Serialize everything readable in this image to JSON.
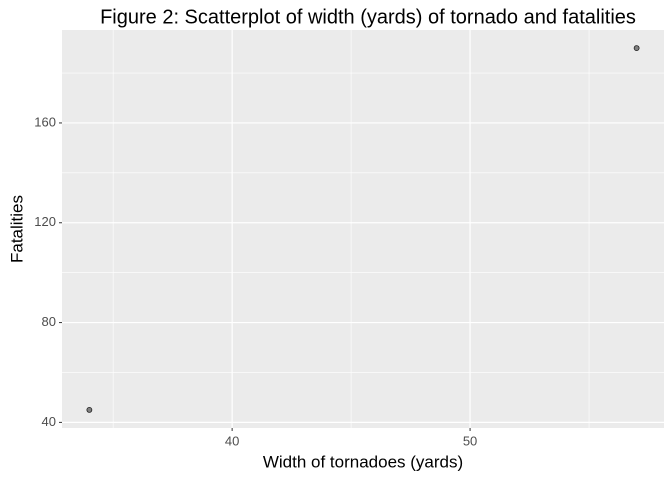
{
  "chart_data": {
    "type": "scatter",
    "title": "Figure 2: Scatterplot of width (yards) of tornado and fatalities",
    "x_label": "Width of tornadoes (yards)",
    "y_label": "Fatalities",
    "series": [
      {
        "x": [
          34,
          57
        ],
        "values": [
          45,
          190
        ],
        "color": "#808080"
      }
    ],
    "xlim": [
      32.85,
      58.15
    ],
    "xticks": [
      40,
      50
    ],
    "x_minor_grid": [
      35,
      45,
      55
    ],
    "ylim": [
      37.75,
      197.25
    ],
    "yticks": [
      40,
      80,
      120,
      160
    ],
    "y_minor_grid": [
      60,
      100,
      140,
      180
    ],
    "grid": true
  }
}
